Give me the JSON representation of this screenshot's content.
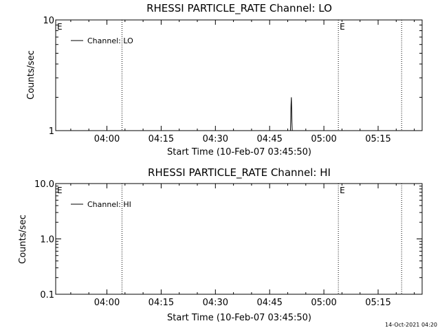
{
  "footer": {
    "timestamp": "14-Oct-2021 04:20"
  },
  "chart_data": [
    {
      "type": "line",
      "title": "RHESSI PARTICLE_RATE Channel: LO",
      "xlabel": "Start Time (10-Feb-07 03:45:50)",
      "ylabel": "Counts/sec",
      "yscale": "log",
      "ylim": [
        1,
        10
      ],
      "xlim": [
        "03:45:50",
        "05:27:10"
      ],
      "x_ticks": [
        "04:00",
        "04:15",
        "04:30",
        "04:45",
        "05:00",
        "05:15"
      ],
      "y_ticks": [
        {
          "value": 1,
          "label": "1"
        },
        {
          "value": 10,
          "label": "10"
        }
      ],
      "legend": {
        "position": "top-left",
        "label": "Channel: LO"
      },
      "markers": [
        {
          "label": "E",
          "time": "03:45:50"
        },
        {
          "label": "E",
          "time": "05:04:00"
        }
      ],
      "vlines": [
        "04:04:10",
        "05:04:00",
        "05:21:30"
      ],
      "series": [
        {
          "name": "Channel: LO",
          "points": [
            [
              "04:50:45",
              1
            ],
            [
              "04:50:50",
              1.3
            ],
            [
              "04:50:55",
              1.7
            ],
            [
              "04:51:00",
              2.0
            ],
            [
              "04:51:05",
              1.6
            ],
            [
              "04:51:10",
              1.2
            ],
            [
              "04:51:15",
              1
            ]
          ]
        }
      ],
      "grid": false
    },
    {
      "type": "line",
      "title": "RHESSI PARTICLE_RATE Channel: HI",
      "xlabel": "Start Time (10-Feb-07 03:45:50)",
      "ylabel": "Counts/sec",
      "yscale": "log",
      "ylim": [
        0.1,
        10
      ],
      "xlim": [
        "03:45:50",
        "05:27:10"
      ],
      "x_ticks": [
        "04:00",
        "04:15",
        "04:30",
        "04:45",
        "05:00",
        "05:15"
      ],
      "y_ticks": [
        {
          "value": 0.1,
          "label": "0.1"
        },
        {
          "value": 1,
          "label": "1.0"
        },
        {
          "value": 10,
          "label": "10.0"
        }
      ],
      "legend": {
        "position": "top-left",
        "label": "Channel: HI"
      },
      "markers": [
        {
          "label": "E",
          "time": "03:45:50"
        },
        {
          "label": "E",
          "time": "05:04:00"
        }
      ],
      "vlines": [
        "04:04:10",
        "05:04:00",
        "05:21:30"
      ],
      "series": [
        {
          "name": "Channel: HI",
          "points": []
        }
      ],
      "grid": false
    }
  ]
}
